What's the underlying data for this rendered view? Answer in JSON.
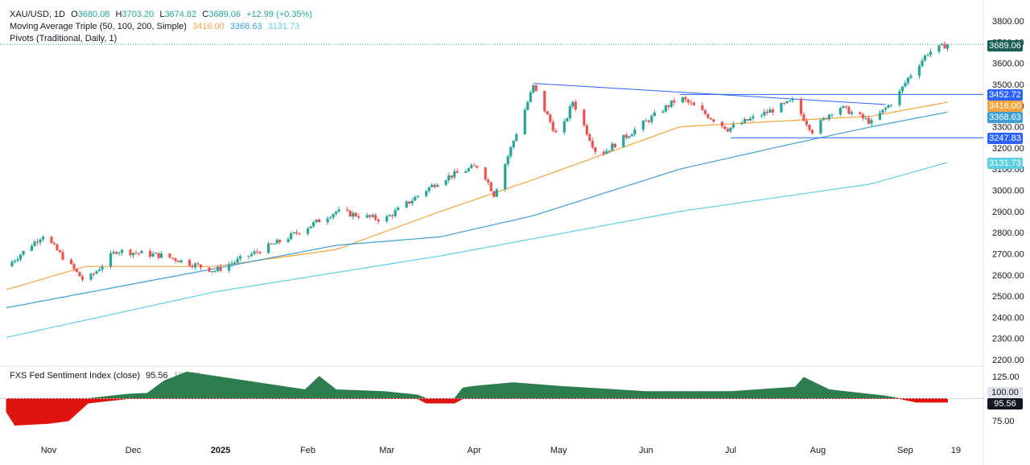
{
  "header": {
    "symbol": "XAU/USD, 1D",
    "open_label": "O",
    "open": "3680.08",
    "high_label": "H",
    "high": "3703.20",
    "low_label": "L",
    "low": "3674.82",
    "close_label": "C",
    "close": "3689.06",
    "change": "+12.99 (+0.35%)",
    "ma_label": "Moving Average Triple (50, 100, 200, Simple)",
    "ma50": "3416.00",
    "ma100": "3368.63",
    "ma200": "3131.73",
    "pivots_label": "Pivots (Traditional, Daily, 1)"
  },
  "sentiment_header": {
    "label": "FXS Fed Sentiment Index (close)",
    "value": "95.56",
    "baseline": "100.00"
  },
  "tags": {
    "price": "3689.06",
    "level_high": "3452.72",
    "ma50": "3416.00",
    "ma100": "3368.63",
    "level_low": "3247.83",
    "ma200": "3131.73",
    "sent_base": "100.00",
    "sent_value": "95.56"
  },
  "colors": {
    "up": "#26a69a",
    "down": "#ef5350",
    "ma50": "#f7a33c",
    "ma100": "#3d9fd6",
    "ma200": "#5bd0e3",
    "pivot": "#2962ff",
    "sent_pos": "#2e7d4f",
    "sent_neg": "#e0140f",
    "last_price_tag": "#1b5e57"
  },
  "chart_data": [
    {
      "type": "line",
      "title": "XAU/USD, 1D",
      "y_ticks": [
        "3800.00",
        "3700.00",
        "3600.00",
        "3500.00",
        "3400.00",
        "3300.00",
        "3200.00",
        "3100.00",
        "3000.00",
        "2900.00",
        "2800.00",
        "2700.00",
        "2600.00",
        "2500.00",
        "2400.00",
        "2300.00",
        "2200.00"
      ],
      "x_ticks": [
        "Nov",
        "Dec",
        "2025",
        "Feb",
        "Mar",
        "Apr",
        "May",
        "Jun",
        "Jul",
        "Aug",
        "Sep",
        "19"
      ],
      "ylim": [
        2170,
        3850
      ],
      "series": [
        {
          "name": "XAU/USD",
          "x": [
            "Oct 17",
            "Oct 30",
            "Nov 14",
            "Nov 25",
            "Dec 12",
            "Dec 30",
            "Jan 24",
            "Feb 11",
            "Feb 28",
            "Mar 20",
            "Apr 3",
            "Apr 8",
            "Apr 22",
            "May 1",
            "May 6",
            "May 15",
            "Jun 13",
            "Jun 30",
            "Jul 23",
            "Jul 30",
            "Aug 8",
            "Aug 20",
            "Aug 29",
            "Sep 2",
            "Sep 9",
            "Sep 16"
          ],
          "values": [
            2640,
            2790,
            2565,
            2715,
            2690,
            2620,
            2770,
            2900,
            2860,
            3050,
            3120,
            2980,
            3490,
            3240,
            3420,
            3160,
            3440,
            3290,
            3420,
            3280,
            3400,
            3320,
            3440,
            3530,
            3650,
            3689
          ]
        },
        {
          "name": "Moving Average 50",
          "x": [
            "Oct 17",
            "Nov 14",
            "Dec 30",
            "Feb 11",
            "Mar 20",
            "Apr 22",
            "Jun 13",
            "Jul 23",
            "Aug 20",
            "Sep 16"
          ],
          "values": [
            2530,
            2640,
            2640,
            2720,
            2900,
            3050,
            3300,
            3330,
            3350,
            3416
          ]
        },
        {
          "name": "Moving Average 100",
          "x": [
            "Oct 17",
            "Dec 30",
            "Feb 11",
            "Mar 20",
            "Apr 22",
            "Jun 13",
            "Jul 23",
            "Aug 20",
            "Sep 16"
          ],
          "values": [
            2445,
            2630,
            2740,
            2780,
            2880,
            3100,
            3220,
            3300,
            3369
          ]
        },
        {
          "name": "Moving Average 200",
          "x": [
            "Oct 17",
            "Dec 30",
            "Mar 20",
            "Jun 13",
            "Aug 20",
            "Sep 16"
          ],
          "values": [
            2305,
            2520,
            2690,
            2900,
            3030,
            3132
          ]
        }
      ],
      "pivot_levels": [
        3452.72,
        3247.83
      ],
      "last_price": 3689.06
    },
    {
      "type": "area",
      "title": "FXS Fed Sentiment Index (close)",
      "y_ticks": [
        "125.00",
        "75.00"
      ],
      "ylim": [
        65,
        132
      ],
      "baseline": 100,
      "x": [
        "Oct 17",
        "Oct 20",
        "Nov 1",
        "Nov 8",
        "Nov 15",
        "Nov 29",
        "Dec 6",
        "Dec 12",
        "Dec 20",
        "Jan 31",
        "Feb 5",
        "Feb 11",
        "Feb 28",
        "Mar 12",
        "Mar 15",
        "Mar 25",
        "Mar 28",
        "Apr 1",
        "Apr 15",
        "May 1",
        "Jun 1",
        "Jul 1",
        "Jul 24",
        "Jul 27",
        "Aug 5",
        "Aug 25",
        "Aug 30",
        "Sep 5",
        "Sep 16"
      ],
      "values": [
        85,
        70,
        72,
        75,
        95,
        105,
        106,
        120,
        130,
        110,
        125,
        110,
        108,
        104,
        95,
        95,
        112,
        114,
        118,
        114,
        108,
        108,
        113,
        124,
        110,
        103,
        100,
        96,
        96
      ]
    }
  ]
}
